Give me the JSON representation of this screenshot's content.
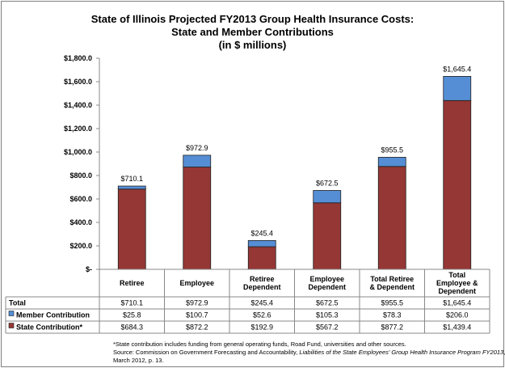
{
  "chart_data": {
    "type": "bar",
    "stacked": true,
    "title": [
      "State of Illinois Projected FY2013 Group Health Insurance Costs:",
      "State and Member Contributions",
      "(in $ millions)"
    ],
    "ylim": [
      0,
      1800
    ],
    "yticks": [
      "$1,800.0",
      "$1,600.0",
      "$1,400.0",
      "$1,200.0",
      "$1,000.0",
      "$800.0",
      "$600.0",
      "$400.0",
      "$200.0",
      "$-"
    ],
    "ytick_values": [
      1800,
      1600,
      1400,
      1200,
      1000,
      800,
      600,
      400,
      200,
      0
    ],
    "categories": [
      [
        "Retiree"
      ],
      [
        "Employee"
      ],
      [
        "Retiree",
        "Dependent"
      ],
      [
        "Employee",
        "Dependent"
      ],
      [
        "Total Retiree",
        "& Dependent"
      ],
      [
        "Total",
        "Employee &",
        "Dependent"
      ]
    ],
    "series": [
      {
        "name": "State Contribution*",
        "color": "#953735",
        "values": [
          684.3,
          872.2,
          192.9,
          567.2,
          877.2,
          1439.4
        ],
        "labels": [
          "$684.3",
          "$872.2",
          "$192.9",
          "$567.2",
          "$877.2",
          "$1,439.4"
        ]
      },
      {
        "name": "Member Contribution",
        "color": "#558ed5",
        "values": [
          25.8,
          100.7,
          52.6,
          105.3,
          78.3,
          206.0
        ],
        "labels": [
          "$25.8",
          "$100.7",
          "$52.6",
          "$105.3",
          "$78.3",
          "$206.0"
        ]
      }
    ],
    "totals": {
      "name": "Total",
      "values": [
        710.1,
        972.9,
        245.4,
        672.5,
        955.5,
        1645.4
      ],
      "labels": [
        "$710.1",
        "$972.9",
        "$245.4",
        "$672.5",
        "$955.5",
        "$1,645.4"
      ]
    }
  },
  "footnote": {
    "line1": "*State contribution includes funding from general operating funds, Road Fund, universities and other sources.",
    "line2_prefix": "Source: Commission on Government Forecasting and Accountability, ",
    "line2_italic": "Liabilities of the State Employees' Group Health Insurance Program  FY2013",
    "line2_suffix": ",",
    "line3": "March 2012, p. 13."
  }
}
